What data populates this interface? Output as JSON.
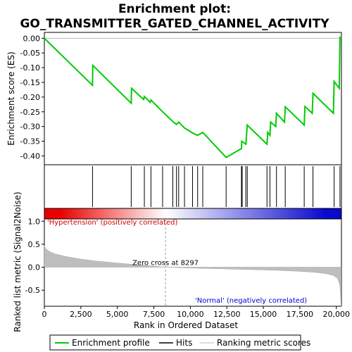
{
  "chart_data": {
    "type": "line",
    "title_line1": "Enrichment plot:",
    "title_line2": "GO_TRANSMITTER_GATED_CHANNEL_ACTIVITY",
    "top_panel": {
      "ylabel": "Enrichment score (ES)",
      "ylim": [
        -0.43,
        0.02
      ],
      "yticks": [
        "0.00",
        "-0.05",
        "-0.10",
        "-0.15",
        "-0.20",
        "-0.25",
        "-0.30",
        "-0.35",
        "-0.40"
      ],
      "series": [
        {
          "name": "Enrichment profile",
          "color": "#00cc00",
          "x": [
            0,
            3300,
            3320,
            5950,
            5970,
            6800,
            6850,
            7250,
            7300,
            8100,
            8800,
            9050,
            9200,
            9600,
            10150,
            10500,
            10850,
            12450,
            13500,
            13520,
            13800,
            13850,
            13900,
            15250,
            15300,
            15450,
            15500,
            15850,
            15900,
            16450,
            16500,
            17800,
            17850,
            18350,
            18400,
            19800,
            19850,
            20200,
            20250,
            20350
          ],
          "y": [
            0.0,
            -0.16,
            -0.092,
            -0.221,
            -0.17,
            -0.208,
            -0.198,
            -0.218,
            -0.21,
            -0.25,
            -0.283,
            -0.293,
            -0.285,
            -0.305,
            -0.322,
            -0.33,
            -0.32,
            -0.405,
            -0.375,
            -0.35,
            -0.36,
            -0.33,
            -0.295,
            -0.36,
            -0.32,
            -0.33,
            -0.285,
            -0.3,
            -0.255,
            -0.285,
            -0.233,
            -0.295,
            -0.232,
            -0.255,
            -0.187,
            -0.255,
            -0.147,
            -0.17,
            0.003,
            0.0
          ]
        }
      ]
    },
    "hits": [
      3300,
      5950,
      6850,
      7300,
      8100,
      8800,
      9050,
      9200,
      9600,
      10150,
      10500,
      10850,
      12450,
      13500,
      13550,
      13800,
      13900,
      15250,
      15450,
      15900,
      16500,
      17800,
      18400,
      19850,
      20250
    ],
    "bottom_panel": {
      "ylabel": "Ranked list metric (Signal2Noise)",
      "ylim": [
        -0.85,
        1.05
      ],
      "yticks": [
        "1.0",
        "0.5",
        "0.0",
        "-0.5"
      ],
      "zero_cross_label": "Zero cross at 8297",
      "zero_cross": 8297,
      "pos_label": "'Hypertension' (positively correlated)",
      "neg_label": "'Normal' (negatively correlated)",
      "metric": [
        [
          0,
          0.47
        ],
        [
          100,
          0.4
        ],
        [
          300,
          0.35
        ],
        [
          700,
          0.29
        ],
        [
          1500,
          0.23
        ],
        [
          2500,
          0.175
        ],
        [
          3500,
          0.135
        ],
        [
          5000,
          0.09
        ],
        [
          6500,
          0.05
        ],
        [
          8297,
          0.0
        ],
        [
          10000,
          -0.02
        ],
        [
          12000,
          -0.035
        ],
        [
          14000,
          -0.05
        ],
        [
          16000,
          -0.068
        ],
        [
          17500,
          -0.09
        ],
        [
          18500,
          -0.11
        ],
        [
          19300,
          -0.14
        ],
        [
          19800,
          -0.18
        ],
        [
          20100,
          -0.25
        ],
        [
          20250,
          -0.4
        ],
        [
          20330,
          -0.85
        ]
      ]
    },
    "xlabel": "Rank in Ordered Dataset",
    "xlim": [
      0,
      20350
    ],
    "xticks": [
      "0",
      "2,500",
      "5,000",
      "7,500",
      "10,000",
      "12,500",
      "15,000",
      "17,500",
      "20,000"
    ],
    "legend": {
      "placement": "bottom",
      "items": [
        "Enrichment profile",
        "Hits",
        "Ranking metric scores"
      ]
    },
    "colors": {
      "profile": "#00cc00",
      "metric_fill": "#bebebe",
      "positive": "#e8001c",
      "negative": "#0a00c8",
      "zero_line": "#999999"
    }
  }
}
